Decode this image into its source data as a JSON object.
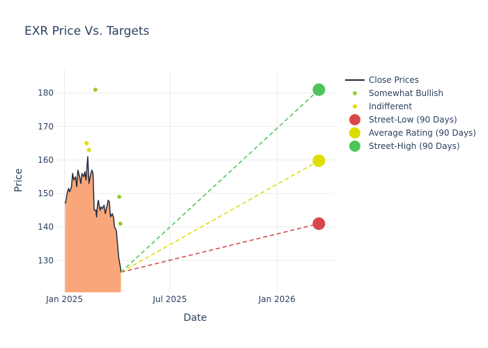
{
  "chart_data": {
    "type": "line",
    "title": "EXR Price Vs. Targets",
    "xlabel": "Date",
    "ylabel": "Price",
    "xlim": [
      "2024-12-17",
      "2026-04-10"
    ],
    "ylim": [
      120.5,
      187
    ],
    "x_ticks": [
      {
        "date": "2025-01-01",
        "label": "Jan 2025"
      },
      {
        "date": "2025-07-01",
        "label": "Jul 2025"
      },
      {
        "date": "2026-01-01",
        "label": "Jan 2026"
      }
    ],
    "y_ticks": [
      130,
      140,
      150,
      160,
      170,
      180
    ],
    "grid": true,
    "legend_position": "top-right",
    "colors": {
      "close_line": "#1f2a3c",
      "close_fill": "#f9a77a",
      "somewhat_bullish": "#9acd32",
      "indifferent": "#dddd00",
      "street_low": "#d9474b",
      "average_rating": "#dddd00",
      "street_high": "#4ec45a",
      "grid": "#ebebeb"
    },
    "close_prices": {
      "name": "Close Prices",
      "x": [
        "2025-01-02",
        "2025-01-03",
        "2025-01-06",
        "2025-01-08",
        "2025-01-10",
        "2025-01-13",
        "2025-01-15",
        "2025-01-17",
        "2025-01-20",
        "2025-01-22",
        "2025-01-24",
        "2025-01-27",
        "2025-01-29",
        "2025-01-31",
        "2025-02-03",
        "2025-02-05",
        "2025-02-07",
        "2025-02-10",
        "2025-02-12",
        "2025-02-14",
        "2025-02-17",
        "2025-02-19",
        "2025-02-21",
        "2025-02-24",
        "2025-02-25",
        "2025-02-26",
        "2025-02-28",
        "2025-03-03",
        "2025-03-05",
        "2025-03-07",
        "2025-03-10",
        "2025-03-12",
        "2025-03-14",
        "2025-03-17",
        "2025-03-19",
        "2025-03-21",
        "2025-03-24",
        "2025-03-26",
        "2025-03-28",
        "2025-03-31",
        "2025-04-02",
        "2025-04-03",
        "2025-04-04",
        "2025-04-07",
        "2025-04-08"
      ],
      "y": [
        147,
        147.5,
        150.5,
        151.5,
        150.5,
        152,
        156,
        154,
        155,
        152,
        157,
        155,
        153,
        156,
        155,
        156.5,
        154,
        161,
        153,
        155,
        157,
        156,
        145,
        145,
        143,
        145.5,
        148,
        145,
        146,
        145.5,
        146.5,
        144,
        145.5,
        148,
        147.5,
        143,
        144,
        143,
        140,
        139,
        135,
        133,
        131,
        128,
        126.5
      ]
    },
    "somewhat_bullish": {
      "name": "Somewhat Bullish",
      "points": [
        {
          "x": "2025-02-23",
          "y": 181
        },
        {
          "x": "2025-04-05",
          "y": 149
        },
        {
          "x": "2025-04-07",
          "y": 141
        }
      ]
    },
    "indifferent": {
      "name": "Indifferent",
      "points": [
        {
          "x": "2025-02-08",
          "y": 165
        },
        {
          "x": "2025-02-12",
          "y": 163
        }
      ]
    },
    "targets": {
      "start": {
        "x": "2025-04-08",
        "y": 126.5
      },
      "end_date": "2026-03-14",
      "series": [
        {
          "key": "street_low",
          "name": "Street-Low (90 Days)",
          "y": 141
        },
        {
          "key": "average_rating",
          "name": "Average Rating (90 Days)",
          "y": 159.8
        },
        {
          "key": "street_high",
          "name": "Street-High (90 Days)",
          "y": 181
        }
      ]
    }
  }
}
